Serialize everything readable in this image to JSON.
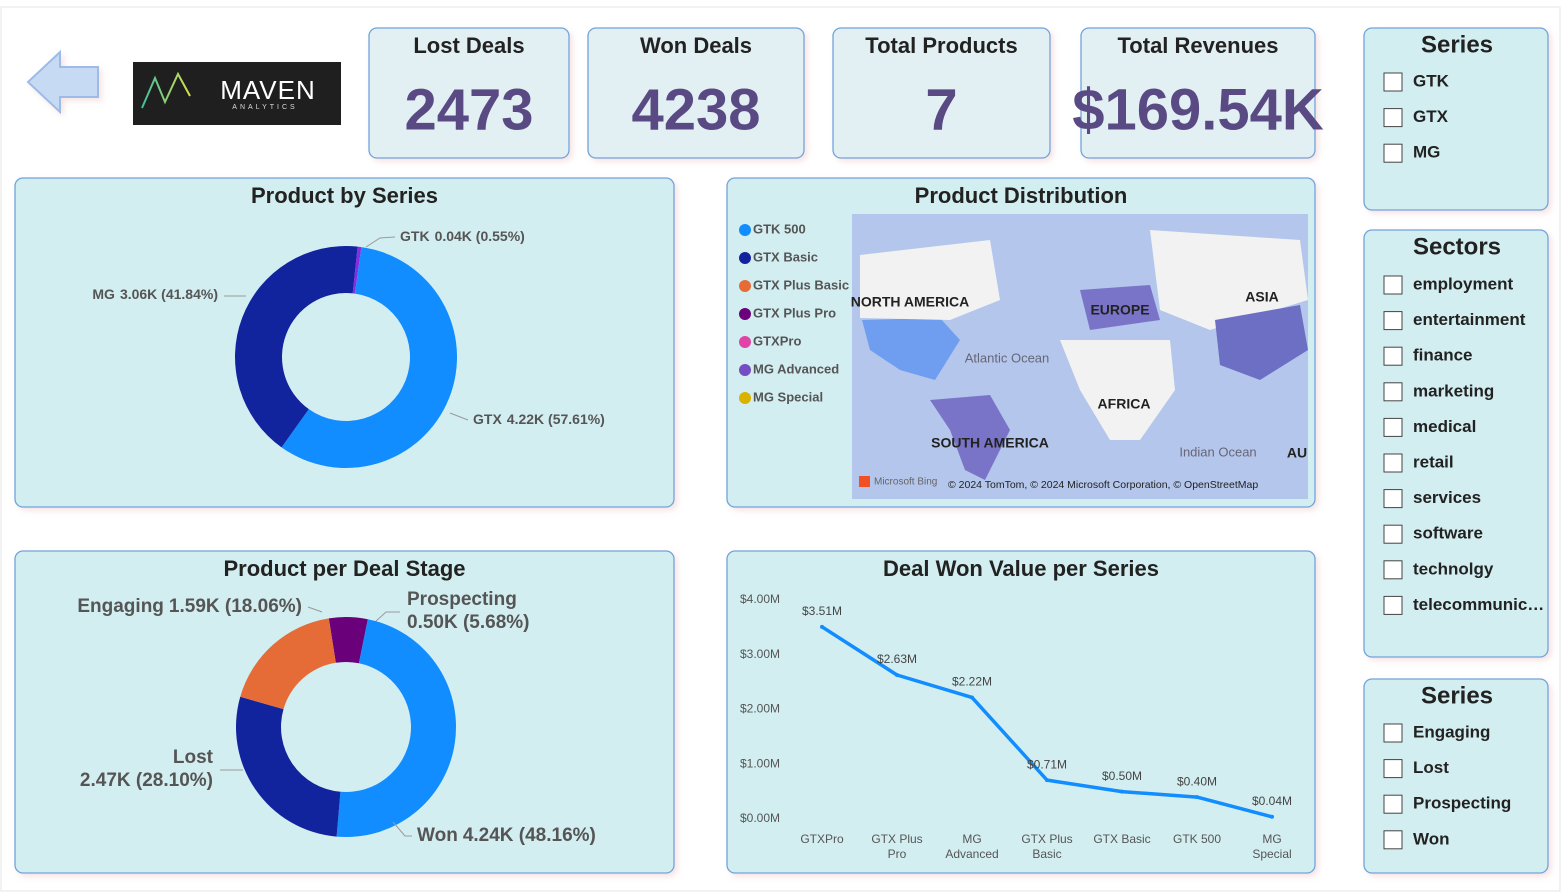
{
  "header": {
    "logo_text": "MAVEN",
    "logo_subtext": "ANALYTICS"
  },
  "kpis": [
    {
      "label": "Lost Deals",
      "value": 2473
    },
    {
      "label": "Won Deals",
      "value": 4238
    },
    {
      "label": "Total Products",
      "value": 7
    },
    {
      "label": "Total Revenues",
      "value": "$169.54K"
    }
  ],
  "chart_data": [
    {
      "type": "pie",
      "title": "Product by Series",
      "donut": true,
      "categories": [
        "GTK",
        "GTX",
        "MG"
      ],
      "values": [
        0.04,
        4.22,
        3.06
      ],
      "value_labels": [
        "0.04K (0.55%)",
        "4.22K (57.61%)",
        "3.06K (41.84%)"
      ],
      "colors": [
        "#8a2be2",
        "#118dff",
        "#12239e"
      ]
    },
    {
      "type": "pie",
      "title": "Product per Deal Stage",
      "donut": true,
      "categories": [
        "Prospecting",
        "Won",
        "Lost",
        "Engaging"
      ],
      "values": [
        0.5,
        4.24,
        2.47,
        1.59
      ],
      "value_labels": [
        "0.50K (5.68%)",
        "4.24K (48.16%)",
        "2.47K (28.10%)",
        "1.59K (18.06%)"
      ],
      "colors": [
        "#6b007b",
        "#118dff",
        "#12239e",
        "#e66c37"
      ]
    },
    {
      "type": "line",
      "title": "Deal Won Value per Series",
      "categories": [
        "GTXPro",
        "GTX Plus Pro",
        "MG Advanced",
        "GTX Plus Basic",
        "GTX Basic",
        "GTK 500",
        "MG Special"
      ],
      "values": [
        3.51,
        2.63,
        2.22,
        0.71,
        0.5,
        0.4,
        0.04
      ],
      "value_labels": [
        "$3.51M",
        "$2.63M",
        "$2.22M",
        "$0.71M",
        "$0.50M",
        "$0.40M",
        "$0.04M"
      ],
      "color": "#118dff",
      "ylim": [
        0,
        4
      ],
      "yticks": [
        {
          "value": 0,
          "label": "$0.00M"
        },
        {
          "value": 1,
          "label": "$1.00M"
        },
        {
          "value": 2,
          "label": "$2.00M"
        },
        {
          "value": 3,
          "label": "$3.00M"
        },
        {
          "value": 4,
          "label": "$4.00M"
        }
      ],
      "grid": false
    }
  ],
  "map": {
    "title": "Product Distribution",
    "legend": [
      {
        "name": "GTK 500",
        "color": "#118dff"
      },
      {
        "name": "GTX Basic",
        "color": "#12239e"
      },
      {
        "name": "GTX Plus Basic",
        "color": "#e66c37"
      },
      {
        "name": "GTX Plus Pro",
        "color": "#6b007b"
      },
      {
        "name": "GTXPro",
        "color": "#e044a7"
      },
      {
        "name": "MG Advanced",
        "color": "#744ec2"
      },
      {
        "name": "MG Special",
        "color": "#d9b300"
      }
    ],
    "labels": [
      "NORTH AMERICA",
      "EUROPE",
      "ASIA",
      "Atlantic Ocean",
      "AFRICA",
      "SOUTH AMERICA",
      "Indian Ocean",
      "AU"
    ],
    "provider": "Microsoft Bing",
    "attribution": "© 2024 TomTom, © 2024 Microsoft Corporation, © OpenStreetMap"
  },
  "slicers": [
    {
      "title": "Series",
      "items": [
        "GTK",
        "GTX",
        "MG"
      ]
    },
    {
      "title": "Sectors",
      "items": [
        "employment",
        "entertainment",
        "finance",
        "marketing",
        "medical",
        "retail",
        "services",
        "software",
        "technolgy",
        "telecommunic…"
      ]
    },
    {
      "title": "Series",
      "items": [
        "Engaging",
        "Lost",
        "Prospecting",
        "Won"
      ]
    }
  ]
}
